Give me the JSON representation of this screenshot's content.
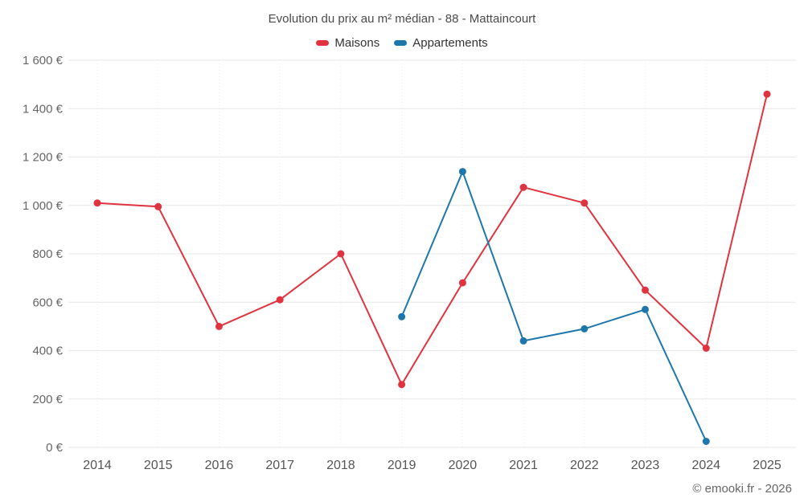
{
  "chart_data": {
    "type": "line",
    "title": "Evolution du prix au m² médian - 88 - Mattaincourt",
    "x": [
      2014,
      2015,
      2016,
      2017,
      2018,
      2019,
      2020,
      2021,
      2022,
      2023,
      2024,
      2025
    ],
    "ylim": [
      0,
      1600
    ],
    "ytick_step": 200,
    "ytick_labels": [
      "0 €",
      "200 €",
      "400 €",
      "600 €",
      "800 €",
      "1 000 €",
      "1 200 €",
      "1 400 €",
      "1 600 €"
    ],
    "grid": true,
    "legend_position": "top",
    "series": [
      {
        "name": "Maisons",
        "color": "#e0333f",
        "x": [
          2014,
          2015,
          2016,
          2017,
          2018,
          2019,
          2020,
          2021,
          2022,
          2023,
          2024,
          2025
        ],
        "values": [
          1010,
          995,
          500,
          610,
          800,
          260,
          680,
          1075,
          1010,
          650,
          410,
          1460
        ]
      },
      {
        "name": "Appartements",
        "color": "#1e77aa",
        "x": [
          2019,
          2020,
          2021,
          2022,
          2023,
          2024
        ],
        "values": [
          540,
          1140,
          440,
          490,
          570,
          25
        ]
      }
    ],
    "colors": {
      "grid": "#e7e7e7",
      "grid_vertical": "#ededed",
      "ytick_text": "#666666",
      "xtick_text": "#555555"
    }
  },
  "footer": {
    "copyright": "© emooki.fr - 2026"
  }
}
